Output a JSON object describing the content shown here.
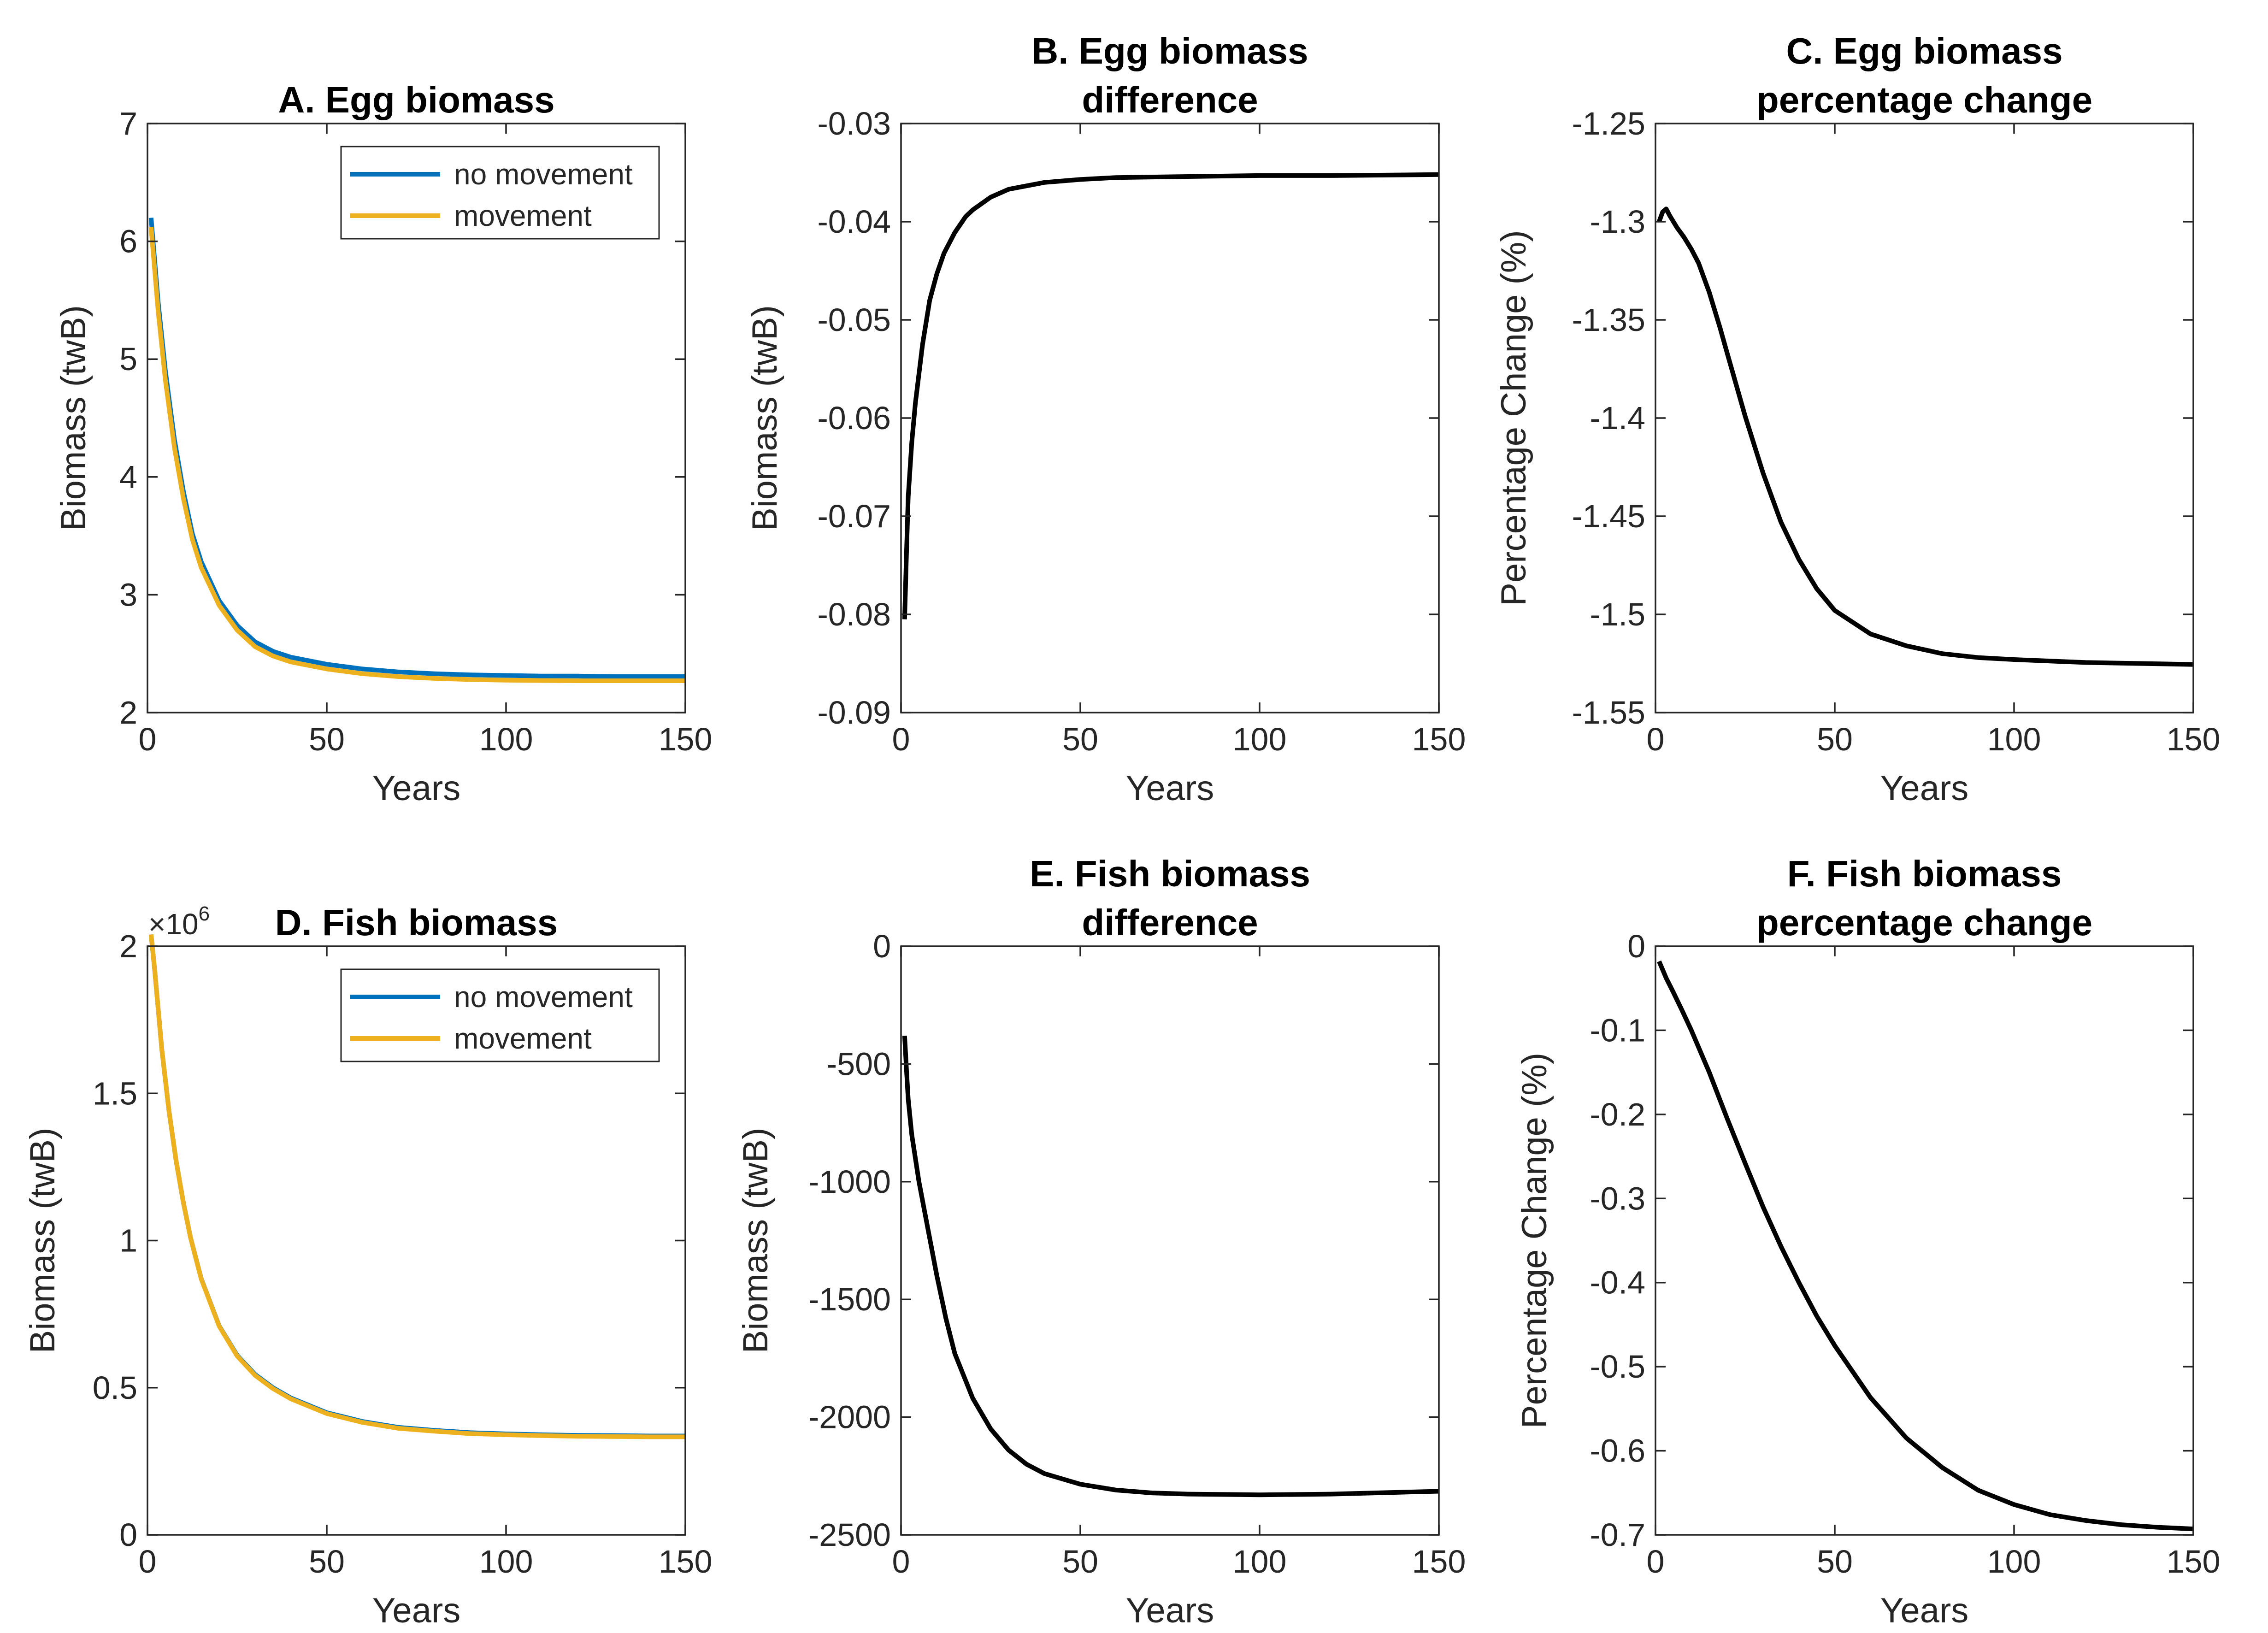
{
  "chart_data": [
    {
      "id": "A",
      "type": "line",
      "title": [
        "A. Egg biomass"
      ],
      "xlabel": "Years",
      "ylabel": "Biomass (twB)",
      "xlim": [
        0,
        150
      ],
      "ylim": [
        2,
        7
      ],
      "xticks": [
        0,
        50,
        100,
        150
      ],
      "yticks": [
        2,
        3,
        4,
        5,
        6,
        7
      ],
      "ytick_labels": [
        "2",
        "3",
        "4",
        "5",
        "6",
        "7"
      ],
      "legend": "top-right",
      "series": [
        {
          "name": "no movement",
          "color": "#0072BD",
          "x": [
            1,
            3,
            5,
            7.5,
            10,
            12.5,
            15,
            20,
            25,
            30,
            35,
            40,
            50,
            60,
            70,
            80,
            90,
            100,
            110,
            120,
            130,
            140,
            150
          ],
          "y": [
            6.2,
            5.48,
            4.9,
            4.32,
            3.88,
            3.52,
            3.28,
            2.95,
            2.74,
            2.6,
            2.52,
            2.47,
            2.41,
            2.37,
            2.345,
            2.33,
            2.32,
            2.315,
            2.31,
            2.31,
            2.305,
            2.305,
            2.305
          ]
        },
        {
          "name": "movement",
          "color": "#EDB120",
          "x": [
            1,
            3,
            5,
            7.5,
            10,
            12.5,
            15,
            20,
            25,
            30,
            35,
            40,
            50,
            60,
            70,
            80,
            90,
            100,
            110,
            120,
            130,
            140,
            150
          ],
          "y": [
            6.12,
            5.4,
            4.82,
            4.25,
            3.82,
            3.47,
            3.23,
            2.91,
            2.7,
            2.56,
            2.48,
            2.43,
            2.37,
            2.33,
            2.305,
            2.29,
            2.28,
            2.275,
            2.272,
            2.27,
            2.27,
            2.27,
            2.27
          ]
        }
      ]
    },
    {
      "id": "B",
      "type": "line",
      "title": [
        "B. Egg biomass",
        "difference"
      ],
      "xlabel": "Years",
      "ylabel": "Biomass (twB)",
      "xlim": [
        0,
        150
      ],
      "ylim": [
        -0.09,
        -0.03
      ],
      "xticks": [
        0,
        50,
        100,
        150
      ],
      "yticks": [
        -0.09,
        -0.08,
        -0.07,
        -0.06,
        -0.05,
        -0.04,
        -0.03
      ],
      "ytick_labels": [
        "-0.09",
        "-0.08",
        "-0.07",
        "-0.06",
        "-0.05",
        "-0.04",
        "-0.03"
      ],
      "series": [
        {
          "color": "#000000",
          "x": [
            1,
            1.5,
            2,
            3,
            4,
            5,
            6,
            8,
            10,
            12,
            15,
            18,
            20,
            25,
            30,
            40,
            50,
            60,
            80,
            100,
            120,
            150
          ],
          "y": [
            -0.0805,
            -0.074,
            -0.068,
            -0.0625,
            -0.0585,
            -0.0555,
            -0.0525,
            -0.048,
            -0.0453,
            -0.0432,
            -0.0411,
            -0.0395,
            -0.0388,
            -0.0375,
            -0.0367,
            -0.036,
            -0.0357,
            -0.0355,
            -0.0354,
            -0.0353,
            -0.0353,
            -0.0352
          ]
        }
      ]
    },
    {
      "id": "C",
      "type": "line",
      "title": [
        "C. Egg biomass",
        "percentage change"
      ],
      "xlabel": "Years",
      "ylabel": "Percentage Change (%)",
      "xlim": [
        0,
        150
      ],
      "ylim": [
        -1.55,
        -1.25
      ],
      "xticks": [
        0,
        50,
        100,
        150
      ],
      "yticks": [
        -1.55,
        -1.5,
        -1.45,
        -1.4,
        -1.35,
        -1.3,
        -1.25
      ],
      "ytick_labels": [
        "-1.55",
        "-1.5",
        "-1.45",
        "-1.4",
        "-1.35",
        "-1.3",
        "-1.25"
      ],
      "series": [
        {
          "color": "#000000",
          "x": [
            1,
            2,
            3,
            4,
            6,
            8,
            10,
            12,
            15,
            18,
            20,
            25,
            30,
            35,
            40,
            45,
            50,
            60,
            70,
            80,
            90,
            100,
            120,
            150
          ],
          "y": [
            -1.3,
            -1.295,
            -1.2935,
            -1.297,
            -1.303,
            -1.308,
            -1.314,
            -1.321,
            -1.336,
            -1.354,
            -1.367,
            -1.399,
            -1.428,
            -1.453,
            -1.472,
            -1.487,
            -1.498,
            -1.51,
            -1.516,
            -1.52,
            -1.522,
            -1.523,
            -1.5245,
            -1.5255
          ]
        }
      ]
    },
    {
      "id": "D",
      "type": "line",
      "title": [
        "D. Fish biomass"
      ],
      "xlabel": "Years",
      "ylabel": "Biomass (twB)",
      "xlim": [
        0,
        150
      ],
      "ylim": [
        0,
        2
      ],
      "xticks": [
        0,
        50,
        100,
        150
      ],
      "yticks": [
        0,
        0.5,
        1,
        1.5,
        2
      ],
      "ytick_labels": [
        "0",
        "0.5",
        "1",
        "1.5",
        "2"
      ],
      "multiplier": {
        "base": "×10",
        "exp": "6"
      },
      "legend": "top-right",
      "series": [
        {
          "name": "no movement",
          "color": "#0072BD",
          "x": [
            1,
            2,
            4,
            6,
            8,
            10,
            12,
            15,
            20,
            25,
            30,
            35,
            40,
            50,
            60,
            70,
            80,
            90,
            100,
            110,
            120,
            130,
            140,
            150
          ],
          "y": [
            2.04,
            1.92,
            1.65,
            1.44,
            1.27,
            1.13,
            1.01,
            0.87,
            0.71,
            0.61,
            0.545,
            0.5,
            0.465,
            0.415,
            0.385,
            0.365,
            0.355,
            0.347,
            0.343,
            0.34,
            0.338,
            0.337,
            0.336,
            0.336
          ]
        },
        {
          "name": "movement",
          "color": "#EDB120",
          "x": [
            1,
            2,
            4,
            6,
            8,
            10,
            12,
            15,
            20,
            25,
            30,
            35,
            40,
            50,
            60,
            70,
            80,
            90,
            100,
            110,
            120,
            130,
            140,
            150
          ],
          "y": [
            2.04,
            1.92,
            1.65,
            1.44,
            1.27,
            1.13,
            1.01,
            0.869,
            0.709,
            0.608,
            0.542,
            0.497,
            0.462,
            0.412,
            0.382,
            0.362,
            0.352,
            0.344,
            0.34,
            0.337,
            0.335,
            0.334,
            0.333,
            0.333
          ]
        }
      ]
    },
    {
      "id": "E",
      "type": "line",
      "title": [
        "E. Fish biomass",
        "difference"
      ],
      "xlabel": "Years",
      "ylabel": "Biomass (twB)",
      "xlim": [
        0,
        150
      ],
      "ylim": [
        -2500,
        0
      ],
      "xticks": [
        0,
        50,
        100,
        150
      ],
      "yticks": [
        -2500,
        -2000,
        -1500,
        -1000,
        -500,
        0
      ],
      "ytick_labels": [
        "-2500",
        "-2000",
        "-1500",
        "-1000",
        "-500",
        "0"
      ],
      "series": [
        {
          "color": "#000000",
          "x": [
            1,
            1.5,
            2,
            3,
            5,
            7.5,
            10,
            12.5,
            15,
            20,
            25,
            30,
            35,
            40,
            50,
            60,
            70,
            80,
            100,
            120,
            150
          ],
          "y": [
            -380,
            -520,
            -650,
            -800,
            -1000,
            -1200,
            -1400,
            -1580,
            -1730,
            -1920,
            -2050,
            -2140,
            -2200,
            -2240,
            -2285,
            -2310,
            -2322,
            -2327,
            -2330,
            -2327,
            -2315
          ]
        }
      ]
    },
    {
      "id": "F",
      "type": "line",
      "title": [
        "F. Fish biomass",
        "percentage change"
      ],
      "xlabel": "Years",
      "ylabel": "Percentage Change (%)",
      "xlim": [
        0,
        150
      ],
      "ylim": [
        -0.7,
        0
      ],
      "xticks": [
        0,
        50,
        100,
        150
      ],
      "yticks": [
        -0.7,
        -0.6,
        -0.5,
        -0.4,
        -0.3,
        -0.2,
        -0.1,
        0
      ],
      "ytick_labels": [
        "-0.7",
        "-0.6",
        "-0.5",
        "-0.4",
        "-0.3",
        "-0.2",
        "-0.1",
        "0"
      ],
      "series": [
        {
          "color": "#000000",
          "x": [
            1,
            2,
            3,
            5,
            7.5,
            10,
            15,
            20,
            25,
            30,
            35,
            40,
            45,
            50,
            60,
            70,
            80,
            90,
            100,
            110,
            120,
            130,
            140,
            150
          ],
          "y": [
            -0.018,
            -0.028,
            -0.038,
            -0.055,
            -0.077,
            -0.1,
            -0.15,
            -0.205,
            -0.258,
            -0.31,
            -0.357,
            -0.4,
            -0.44,
            -0.475,
            -0.537,
            -0.585,
            -0.62,
            -0.647,
            -0.664,
            -0.676,
            -0.683,
            -0.688,
            -0.691,
            -0.693
          ]
        }
      ]
    }
  ]
}
